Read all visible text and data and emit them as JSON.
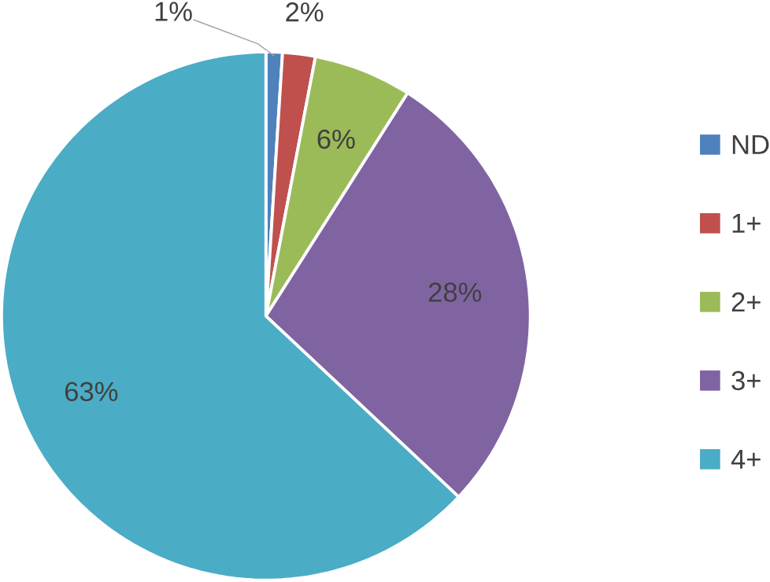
{
  "chart_data": {
    "type": "pie",
    "categories": [
      "ND",
      "1+",
      "2+",
      "3+",
      "4+"
    ],
    "values": [
      1,
      2,
      6,
      28,
      63
    ],
    "colors": [
      "#4f81bd",
      "#c0504d",
      "#9bbb59",
      "#8064a2",
      "#4bacc6"
    ],
    "value_labels": [
      "1%",
      "2%",
      "6%",
      "28%",
      "63%"
    ],
    "legend": "right"
  }
}
